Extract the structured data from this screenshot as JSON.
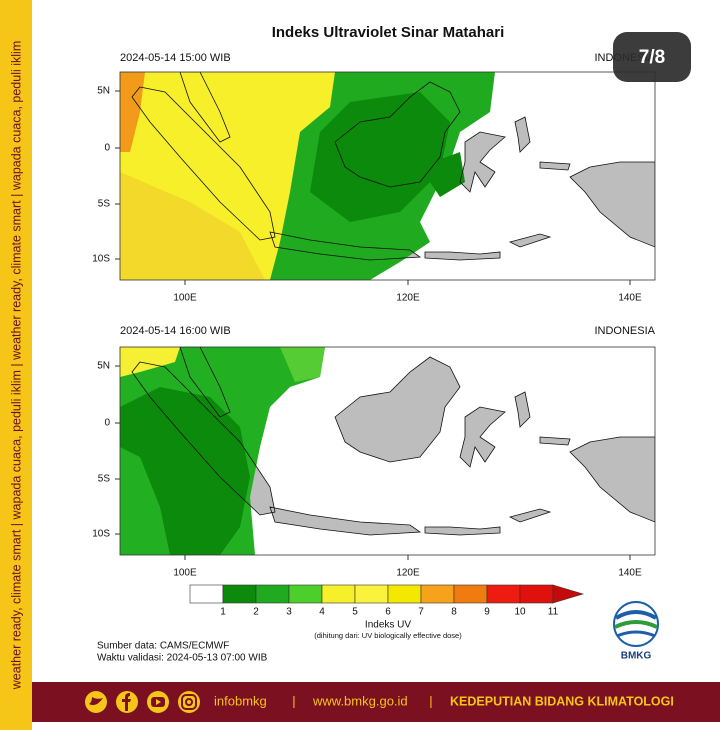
{
  "side_banner": "weather ready, climate smart  |  wapada cuaca, peduli iklim  |  weather ready, climate smart  |  wapada cuaca, peduli iklim",
  "badge": "7/8",
  "title": "Indeks Ultraviolet Sinar Matahari",
  "maps": [
    {
      "timestamp": "2024-05-14  15:00 WIB",
      "region": "INDONESIA"
    },
    {
      "timestamp": "2024-05-14  16:00 WIB",
      "region": "INDONESIA"
    }
  ],
  "lat_labels": [
    "5N",
    "0",
    "5S",
    "10S"
  ],
  "lon_labels": [
    "100E",
    "120E",
    "140E"
  ],
  "colorbar": {
    "title": "Indeks UV",
    "note": "(dihitung dari: UV biologically effective dose)",
    "levels": [
      1,
      2,
      3,
      4,
      5,
      6,
      7,
      8,
      9,
      10,
      11
    ],
    "colors": [
      "#ffffff",
      "#0b8a0b",
      "#1faa1f",
      "#4ccf2a",
      "#f7ef2a",
      "#f9f33c",
      "#f5e800",
      "#f7a21b",
      "#f07c10",
      "#ee1c10",
      "#e0100c",
      "#c40a0a",
      "#a23ce6"
    ]
  },
  "source": "Sumber data: CAMS/ECMWF",
  "valid_time": "Waktu validasi: 2024-05-13 07:00 WIB",
  "logo": "BMKG",
  "footer": {
    "social": "infobmkg",
    "separator": "|",
    "website": "www.bmkg.go.id",
    "department": "KEDEPUTIAN BIDANG KLIMATOLOGI"
  }
}
